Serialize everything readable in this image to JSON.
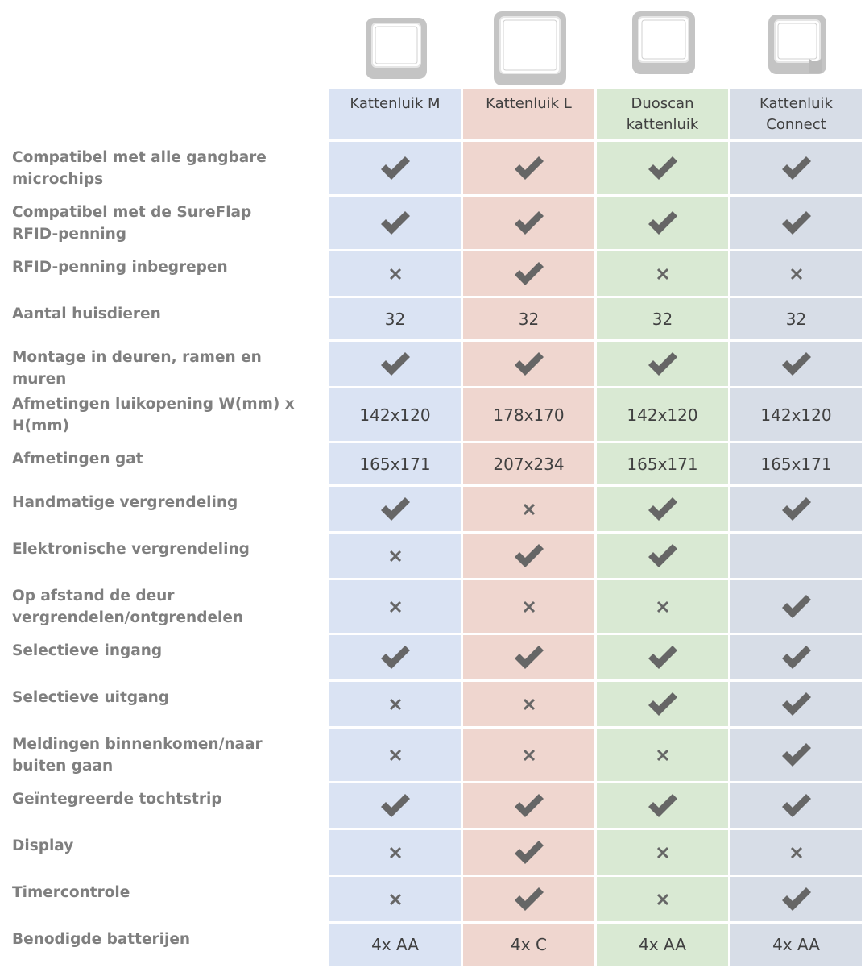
{
  "products": [
    {
      "name": "Kattenluik M",
      "icon": "cat-flap-icon"
    },
    {
      "name": "Kattenluik L",
      "icon": "cat-flap-large-icon"
    },
    {
      "name": "Duoscan kattenluik",
      "icon": "cat-flap-duoscan-icon"
    },
    {
      "name": "Kattenluik Connect",
      "icon": "cat-flap-connect-icon"
    }
  ],
  "colors": {
    "col1": "#dae3f3",
    "col2": "#efd6cf",
    "col3": "#d9e9d3",
    "col4": "#d7dde7",
    "label": "#7f7f7f",
    "mark": "#666666"
  },
  "rows": [
    {
      "label": "Compatibel met alle gangbare microchips",
      "values": [
        "check",
        "check",
        "check",
        "check"
      ]
    },
    {
      "label": "Compatibel met de SureFlap RFID-penning",
      "values": [
        "check",
        "check",
        "check",
        "check"
      ]
    },
    {
      "label": "RFID-penning inbegrepen",
      "values": [
        "x",
        "check",
        "x",
        "x"
      ]
    },
    {
      "label": "Aantal huisdieren",
      "values": [
        "32",
        "32",
        "32",
        "32"
      ]
    },
    {
      "label": "Montage in deuren, ramen en muren",
      "values": [
        "check",
        "check",
        "check",
        "check"
      ]
    },
    {
      "label": "Afmetingen luikopening W(mm) x H(mm)",
      "values": [
        "142x120",
        "178x170",
        "142x120",
        "142x120"
      ]
    },
    {
      "label": "Afmetingen gat",
      "values": [
        "165x171",
        "207x234",
        "165x171",
        "165x171"
      ]
    },
    {
      "label": "Handmatige vergrendeling",
      "values": [
        "check",
        "x",
        "check",
        "check"
      ]
    },
    {
      "label": "Elektronische vergrendeling",
      "values": [
        "x",
        "check",
        "check",
        ""
      ]
    },
    {
      "label": "Op afstand de deur vergrendelen/ontgrendelen",
      "values": [
        "x",
        "x",
        "x",
        "check"
      ]
    },
    {
      "label": "Selectieve ingang",
      "values": [
        "check",
        "check",
        "check",
        "check"
      ]
    },
    {
      "label": "Selectieve uitgang",
      "values": [
        "x",
        "x",
        "check",
        "check"
      ]
    },
    {
      "label": "Meldingen binnenkomen/naar buiten gaan",
      "values": [
        "x",
        "x",
        "x",
        "check"
      ]
    },
    {
      "label": "Geïntegreerde tochtstrip",
      "values": [
        "check",
        "check",
        "check",
        "check"
      ]
    },
    {
      "label": "Display",
      "values": [
        "x",
        "check",
        "x",
        "x"
      ]
    },
    {
      "label": "Timercontrole",
      "values": [
        "x",
        "check",
        "x",
        "check"
      ]
    },
    {
      "label": "Benodigde batterijen",
      "values": [
        "4x AA",
        "4x C",
        "4x AA",
        "4x AA"
      ]
    }
  ]
}
